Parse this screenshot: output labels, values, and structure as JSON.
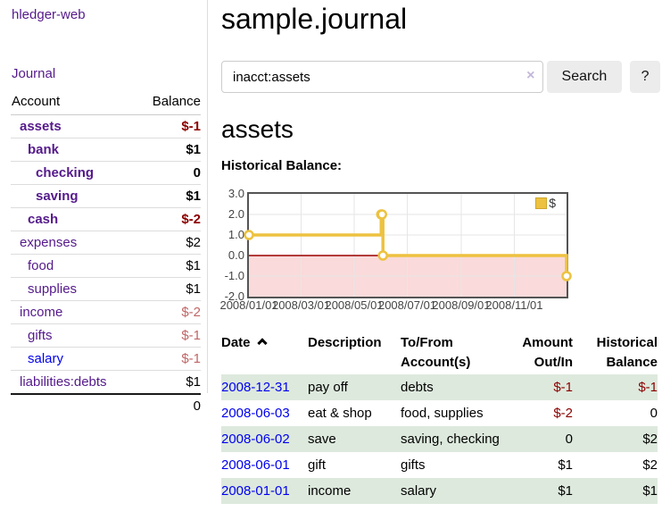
{
  "app": {
    "brand": "hledger-web",
    "nav_journal": "Journal"
  },
  "colors": {
    "accent_purple": "#551a8b",
    "link_blue": "#0000ee",
    "negative": "#8b0000",
    "negative_dim": "#c16666",
    "stripe_green": "#dde9dd"
  },
  "sidebar": {
    "account_header": "Account",
    "balance_header": "Balance",
    "accounts": [
      {
        "name": "assets",
        "balance": "$-1",
        "indent": 1,
        "bold": true,
        "dim": false,
        "blue": false
      },
      {
        "name": "bank",
        "balance": "$1",
        "indent": 2,
        "bold": true,
        "dim": false,
        "blue": false
      },
      {
        "name": "checking",
        "balance": "0",
        "indent": 3,
        "bold": true,
        "dim": false,
        "blue": false
      },
      {
        "name": "saving",
        "balance": "$1",
        "indent": 3,
        "bold": true,
        "dim": false,
        "blue": false
      },
      {
        "name": "cash",
        "balance": "$-2",
        "indent": 2,
        "bold": true,
        "dim": false,
        "blue": false
      },
      {
        "name": "expenses",
        "balance": "$2",
        "indent": 1,
        "bold": false,
        "dim": false,
        "blue": false
      },
      {
        "name": "food",
        "balance": "$1",
        "indent": 2,
        "bold": false,
        "dim": false,
        "blue": false
      },
      {
        "name": "supplies",
        "balance": "$1",
        "indent": 2,
        "bold": false,
        "dim": false,
        "blue": false
      },
      {
        "name": "income",
        "balance": "$-2",
        "indent": 1,
        "bold": false,
        "dim": true,
        "blue": false
      },
      {
        "name": "gifts",
        "balance": "$-1",
        "indent": 2,
        "bold": false,
        "dim": true,
        "blue": false
      },
      {
        "name": "salary",
        "balance": "$-1",
        "indent": 2,
        "bold": false,
        "dim": true,
        "blue": true
      },
      {
        "name": "liabilities:debts",
        "balance": "$1",
        "indent": 1,
        "bold": false,
        "dim": false,
        "blue": false
      }
    ],
    "total": "0"
  },
  "header": {
    "title": "sample.journal"
  },
  "search": {
    "value": "inacct:assets",
    "clear_icon": "×",
    "button_label": "Search",
    "help_label": "?"
  },
  "register": {
    "heading": "assets",
    "chart_label": "Historical Balance:"
  },
  "chart_data": {
    "type": "line",
    "step": true,
    "title": "Historical Balance",
    "legend_label": "$",
    "legend_position": "top-right",
    "series": [
      {
        "name": "$",
        "x": [
          "2008-01-01",
          "2008-06-01",
          "2008-06-02",
          "2008-06-03",
          "2008-12-31"
        ],
        "values": [
          1,
          2,
          2,
          0,
          -1
        ]
      }
    ],
    "xrange": [
      "2008/01/01",
      "2008/12/31"
    ],
    "ylim": [
      -2,
      3
    ],
    "ytick_labels": [
      "3.0",
      "2.0",
      "1.0",
      "0.0",
      "-1.0",
      "-2.0"
    ],
    "xticks": [
      "2008/01/01",
      "2008/03/01",
      "2008/05/01",
      "2008/07/01",
      "2008/09/01",
      "2008/11/01"
    ],
    "grid": true,
    "colors": {
      "line": "#edc240",
      "marker_fill": "#ffffff",
      "negative_fill": "#fadada",
      "zero_line": "#990000",
      "grid": "#e6e6e6",
      "border": "#545454"
    }
  },
  "table": {
    "headers": {
      "date": "Date",
      "description": "Description",
      "accounts": "To/From Account(s)",
      "amount": "Amount Out/In",
      "balance": "Historical Balance"
    },
    "rows": [
      {
        "date": "2008-12-31",
        "description": "pay off",
        "accounts": "debts",
        "amount": "$-1",
        "balance": "$-1"
      },
      {
        "date": "2008-06-03",
        "description": "eat & shop",
        "accounts": "food, supplies",
        "amount": "$-2",
        "balance": "0"
      },
      {
        "date": "2008-06-02",
        "description": "save",
        "accounts": "saving, checking",
        "amount": "0",
        "balance": "$2"
      },
      {
        "date": "2008-06-01",
        "description": "gift",
        "accounts": "gifts",
        "amount": "$1",
        "balance": "$2"
      },
      {
        "date": "2008-01-01",
        "description": "income",
        "accounts": "salary",
        "amount": "$1",
        "balance": "$1"
      }
    ]
  }
}
